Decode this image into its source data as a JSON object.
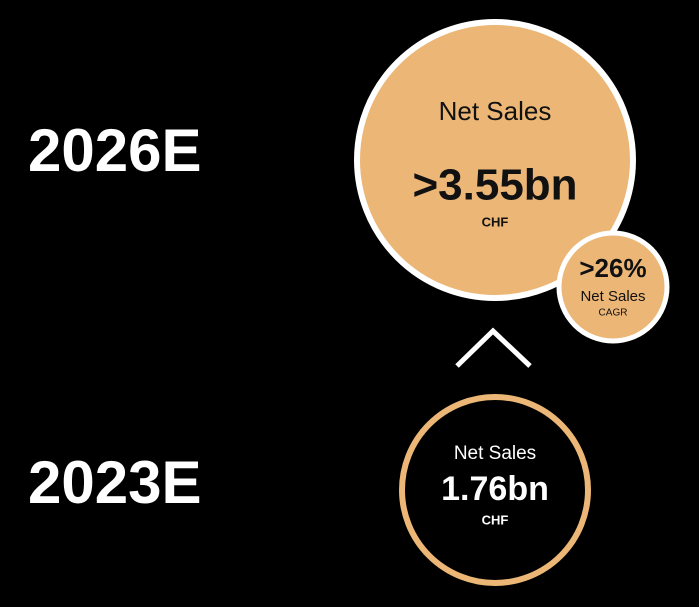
{
  "periods": [
    {
      "label": "2026E",
      "metric": "Net Sales",
      "value": ">3.55bn",
      "unit": "CHF"
    },
    {
      "label": "2023E",
      "metric": "Net Sales",
      "value": "1.76bn",
      "unit": "CHF"
    }
  ],
  "growth": {
    "value": ">26%",
    "metric": "Net Sales",
    "basis": "CAGR"
  }
}
